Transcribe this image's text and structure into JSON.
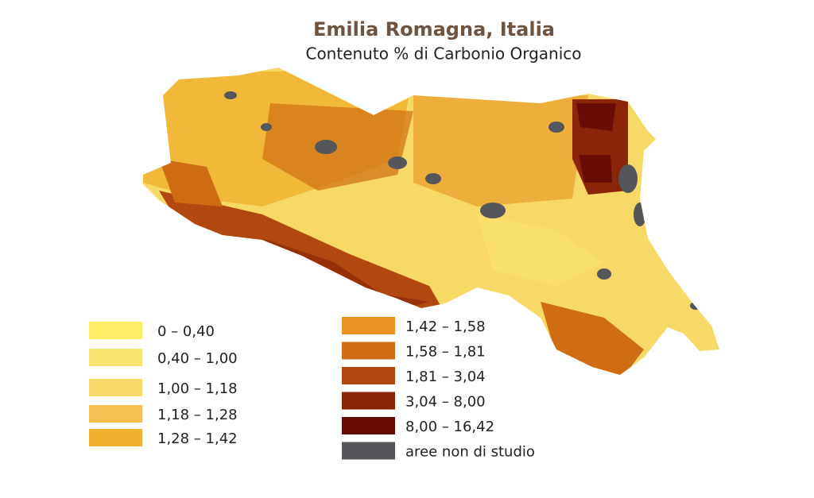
{
  "header": {
    "title": "Emilia Romagna, Italia",
    "subtitle": "Contenuto % di Carbonio Organico"
  },
  "legend": {
    "items": [
      {
        "label": "0 – 0,40",
        "color": "#fcee63"
      },
      {
        "label": "0,40 – 1,00",
        "color": "#f9e472"
      },
      {
        "label": "1,00 – 1,18",
        "color": "#f8d866"
      },
      {
        "label": "1,18 – 1,28",
        "color": "#f6c050"
      },
      {
        "label": "1,28 – 1,42",
        "color": "#efb030"
      },
      {
        "label": "1,42 – 1,58",
        "color": "#e8931f"
      },
      {
        "label": "1,58 – 1,81",
        "color": "#cf6d14"
      },
      {
        "label": "1,81 – 3,04",
        "color": "#b0480f"
      },
      {
        "label": "3,04 – 8,00",
        "color": "#8a2607"
      },
      {
        "label": "8,00 – 16,42",
        "color": "#690b06"
      },
      {
        "label": "aree non di studio",
        "color": "#54565a"
      }
    ]
  }
}
